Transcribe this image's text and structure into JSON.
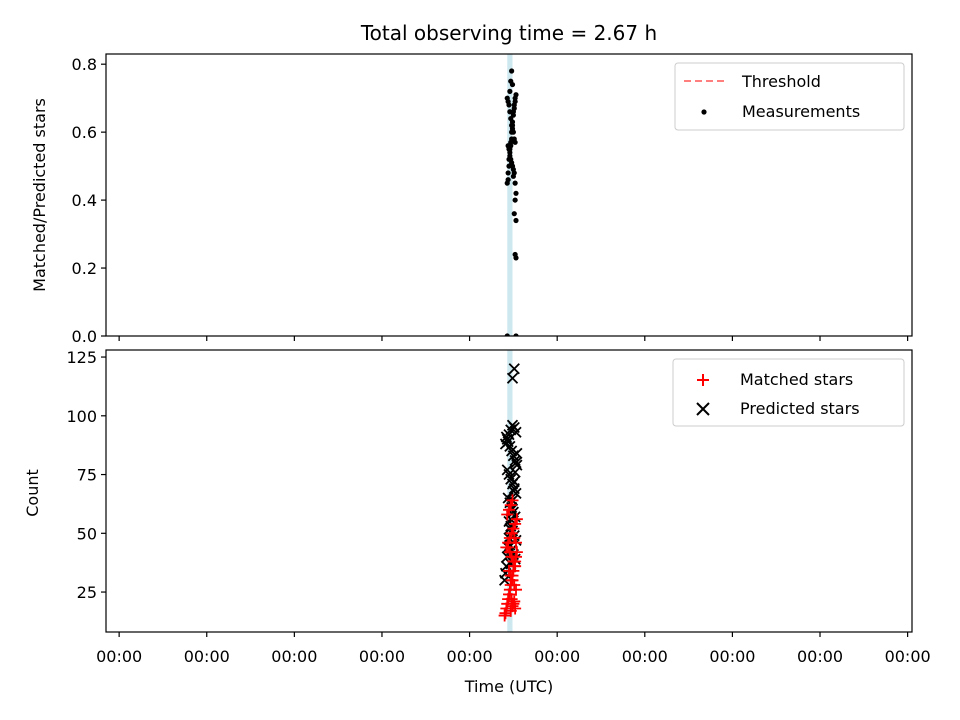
{
  "title": "Total observing time = 2.67 h",
  "chart_data": [
    {
      "type": "scatter",
      "panel": "top",
      "ylabel": "Matched/Predicted stars",
      "ylim": [
        0,
        0.83
      ],
      "yticks": [
        0.0,
        0.2,
        0.4,
        0.6,
        0.8
      ],
      "ytick_labels": [
        "0.0",
        "0.2",
        "0.4",
        "0.6",
        "0.8"
      ],
      "x_range": [
        -0.15,
        9.05
      ],
      "xticks": [
        0,
        1,
        2,
        3,
        4,
        5,
        6,
        7,
        8,
        9
      ],
      "xtick_labels": [
        "",
        "",
        "",
        "",
        "",
        "",
        "",
        "",
        "",
        ""
      ],
      "legend_position": "top-right",
      "shaded_band": {
        "x": [
          4.43,
          4.49
        ],
        "color": "#add8e6"
      },
      "series": [
        {
          "name": "Threshold",
          "kind": "line",
          "color": "#ff7f7f",
          "values": []
        },
        {
          "name": "Measurements",
          "kind": "scatter",
          "color": "#000000",
          "x": [
            4.43,
            4.44,
            4.44,
            4.45,
            4.45,
            4.46,
            4.46,
            4.47,
            4.47,
            4.48,
            4.48,
            4.49,
            4.49,
            4.5,
            4.5,
            4.51,
            4.51,
            4.52,
            4.52,
            4.53,
            4.43,
            4.44,
            4.45,
            4.46,
            4.47,
            4.48,
            4.49,
            4.5,
            4.51,
            4.52,
            4.44,
            4.45,
            4.46,
            4.47,
            4.48,
            4.49,
            4.5,
            4.51,
            4.46,
            4.47,
            4.48,
            4.49,
            4.5,
            4.52,
            4.53,
            4.52,
            4.51,
            4.53,
            4.52,
            4.53,
            4.43,
            4.53
          ],
          "y": [
            0.45,
            0.46,
            0.48,
            0.5,
            0.52,
            0.54,
            0.55,
            0.56,
            0.57,
            0.58,
            0.6,
            0.62,
            0.63,
            0.65,
            0.66,
            0.67,
            0.68,
            0.69,
            0.7,
            0.71,
            0.7,
            0.69,
            0.68,
            0.66,
            0.64,
            0.62,
            0.61,
            0.6,
            0.58,
            0.57,
            0.56,
            0.55,
            0.53,
            0.52,
            0.51,
            0.5,
            0.49,
            0.48,
            0.72,
            0.75,
            0.78,
            0.74,
            0.47,
            0.45,
            0.42,
            0.4,
            0.36,
            0.34,
            0.24,
            0.23,
            0.0,
            0.0
          ]
        }
      ]
    },
    {
      "type": "scatter",
      "panel": "bottom",
      "xlabel": "Time (UTC)",
      "ylabel": "Count",
      "ylim": [
        8,
        128
      ],
      "yticks": [
        25,
        50,
        75,
        100,
        125
      ],
      "ytick_labels": [
        "25",
        "50",
        "75",
        "100",
        "125"
      ],
      "x_range": [
        -0.15,
        9.05
      ],
      "xticks": [
        0,
        1,
        2,
        3,
        4,
        5,
        6,
        7,
        8,
        9
      ],
      "xtick_labels": [
        "00:00",
        "00:00",
        "00:00",
        "00:00",
        "00:00",
        "00:00",
        "00:00",
        "00:00",
        "00:00",
        "00:00"
      ],
      "legend_position": "top-right",
      "shaded_band": {
        "x": [
          4.43,
          4.49
        ],
        "color": "#add8e6"
      },
      "series": [
        {
          "name": "Matched stars",
          "kind": "scatter",
          "marker": "+",
          "color": "#ff0000",
          "x": [
            4.4,
            4.41,
            4.42,
            4.43,
            4.44,
            4.45,
            4.46,
            4.47,
            4.48,
            4.49,
            4.5,
            4.51,
            4.52,
            4.53,
            4.54,
            4.42,
            4.44,
            4.46,
            4.48,
            4.5,
            4.52,
            4.54,
            4.43,
            4.45,
            4.47,
            4.49,
            4.51,
            4.53,
            4.44,
            4.46,
            4.48,
            4.5,
            4.52,
            4.45,
            4.47,
            4.49,
            4.51,
            4.53,
            4.46,
            4.48,
            4.5,
            4.52,
            4.47,
            4.49,
            4.51
          ],
          "y": [
            15,
            16,
            18,
            20,
            22,
            24,
            26,
            28,
            30,
            32,
            34,
            36,
            38,
            40,
            42,
            44,
            46,
            48,
            50,
            52,
            54,
            56,
            58,
            60,
            62,
            64,
            48,
            46,
            44,
            42,
            40,
            38,
            36,
            34,
            32,
            30,
            28,
            26,
            24,
            22,
            20,
            18,
            17,
            19,
            21
          ]
        },
        {
          "name": "Predicted stars",
          "kind": "scatter",
          "marker": "x",
          "color": "#000000",
          "x": [
            4.4,
            4.41,
            4.42,
            4.43,
            4.44,
            4.45,
            4.46,
            4.47,
            4.48,
            4.49,
            4.5,
            4.51,
            4.52,
            4.53,
            4.54,
            4.41,
            4.43,
            4.45,
            4.47,
            4.49,
            4.51,
            4.53,
            4.42,
            4.44,
            4.46,
            4.48,
            4.5,
            4.52,
            4.54,
            4.43,
            4.45,
            4.47,
            4.49,
            4.51,
            4.53,
            4.44,
            4.46,
            4.48,
            4.5,
            4.52,
            4.45,
            4.47,
            4.49,
            4.51,
            4.53,
            4.46,
            4.48,
            4.5,
            4.52,
            4.47,
            4.49,
            4.51
          ],
          "y": [
            30,
            33,
            36,
            40,
            44,
            48,
            52,
            56,
            60,
            64,
            68,
            72,
            76,
            80,
            84,
            88,
            90,
            92,
            94,
            96,
            95,
            93,
            91,
            89,
            87,
            85,
            83,
            81,
            79,
            77,
            75,
            73,
            71,
            69,
            67,
            65,
            63,
            61,
            59,
            57,
            55,
            53,
            51,
            49,
            47,
            45,
            43,
            41,
            39,
            37,
            116,
            120
          ]
        }
      ]
    }
  ]
}
